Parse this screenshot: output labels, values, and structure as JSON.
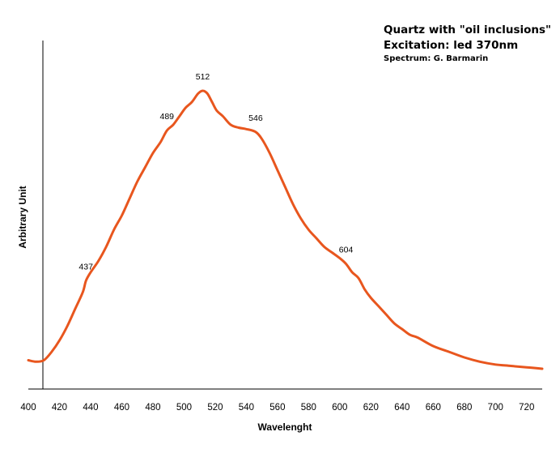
{
  "chart_data": {
    "type": "line",
    "title": "Quartz with \"oil inclusions\"",
    "subtitle": "Excitation: led 370nm",
    "credit": "Spectrum: G. Barmarin",
    "xlabel": "Wavelenght",
    "ylabel": "Arbitrary Unit",
    "xlim": [
      400,
      730
    ],
    "ylim": [
      0,
      1
    ],
    "x_ticks": [
      400,
      420,
      440,
      460,
      480,
      500,
      520,
      540,
      560,
      580,
      600,
      620,
      640,
      660,
      680,
      700,
      720
    ],
    "grid": false,
    "legend": "none",
    "line_color": "#e8561e",
    "series": [
      {
        "x": [
          400,
          405,
          410,
          415,
          420,
          425,
          430,
          435,
          437,
          440,
          445,
          450,
          455,
          460,
          465,
          470,
          475,
          480,
          485,
          489,
          493,
          497,
          501,
          505,
          509,
          512,
          515,
          518,
          521,
          525,
          530,
          535,
          540,
          546,
          550,
          555,
          560,
          565,
          570,
          575,
          580,
          585,
          590,
          595,
          600,
          604,
          608,
          612,
          616,
          620,
          625,
          630,
          635,
          640,
          645,
          650,
          660,
          670,
          680,
          690,
          700,
          710,
          720,
          730
        ],
        "y": [
          0.03,
          0.025,
          0.03,
          0.06,
          0.1,
          0.15,
          0.21,
          0.27,
          0.31,
          0.34,
          0.38,
          0.43,
          0.49,
          0.54,
          0.6,
          0.66,
          0.71,
          0.76,
          0.8,
          0.84,
          0.86,
          0.89,
          0.92,
          0.94,
          0.97,
          0.98,
          0.97,
          0.94,
          0.91,
          0.89,
          0.86,
          0.85,
          0.845,
          0.835,
          0.81,
          0.76,
          0.7,
          0.64,
          0.58,
          0.53,
          0.49,
          0.46,
          0.43,
          0.41,
          0.39,
          0.37,
          0.34,
          0.32,
          0.28,
          0.25,
          0.22,
          0.19,
          0.16,
          0.14,
          0.12,
          0.11,
          0.08,
          0.06,
          0.04,
          0.025,
          0.015,
          0.01,
          0.005,
          0.0
        ]
      }
    ],
    "annotations": [
      {
        "x": 437,
        "y": 0.31,
        "text": "437"
      },
      {
        "x": 489,
        "y": 0.84,
        "text": "489"
      },
      {
        "x": 512,
        "y": 0.98,
        "text": "512"
      },
      {
        "x": 546,
        "y": 0.835,
        "text": "546"
      },
      {
        "x": 604,
        "y": 0.37,
        "text": "604"
      }
    ]
  }
}
